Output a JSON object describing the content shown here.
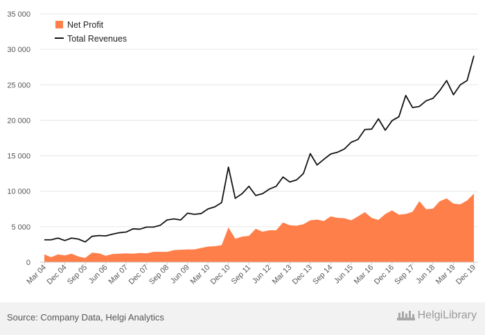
{
  "colors": {
    "net_profit": "#ff7f4a",
    "total_revenues": "#111111",
    "grid": "#e6e6e6"
  },
  "footer": {
    "source": "Source: Company Data, Helgi Analytics",
    "brand": "HelgiLibrary",
    "brand_icon": "helgi-logo-icon"
  },
  "chart_data": {
    "type": "area",
    "title": "",
    "xlabel": "",
    "ylabel": "",
    "ylim": [
      0,
      35000
    ],
    "yticks": [
      0,
      5000,
      10000,
      15000,
      20000,
      25000,
      30000,
      35000
    ],
    "ytick_labels": [
      "0",
      "5 000",
      "10 000",
      "15 000",
      "20 000",
      "25 000",
      "30 000",
      "35 000"
    ],
    "xtick_labels": [
      "Mar 04",
      "Dec 04",
      "Sep 05",
      "Jun 06",
      "Mar 07",
      "Dec 07",
      "Sep 08",
      "Jun 09",
      "Mar 10",
      "Dec 10",
      "Sep 11",
      "Jun 12",
      "Mar 13",
      "Dec 13",
      "Sep 14",
      "Jun 15",
      "Mar 16",
      "Dec 16",
      "Sep 17",
      "Jun 18",
      "Mar 19",
      "Dec 19"
    ],
    "grid": true,
    "legend": "top-left",
    "x": [
      "Mar 04",
      "Jun 04",
      "Sep 04",
      "Dec 04",
      "Mar 05",
      "Jun 05",
      "Sep 05",
      "Dec 05",
      "Mar 06",
      "Jun 06",
      "Sep 06",
      "Dec 06",
      "Mar 07",
      "Jun 07",
      "Sep 07",
      "Dec 07",
      "Mar 08",
      "Jun 08",
      "Sep 08",
      "Dec 08",
      "Mar 09",
      "Jun 09",
      "Sep 09",
      "Dec 09",
      "Mar 10",
      "Jun 10",
      "Sep 10",
      "Dec 10",
      "Mar 11",
      "Jun 11",
      "Sep 11",
      "Dec 11",
      "Mar 12",
      "Jun 12",
      "Sep 12",
      "Dec 12",
      "Mar 13",
      "Jun 13",
      "Sep 13",
      "Dec 13",
      "Mar 14",
      "Jun 14",
      "Sep 14",
      "Dec 14",
      "Mar 15",
      "Jun 15",
      "Sep 15",
      "Dec 15",
      "Mar 16",
      "Jun 16",
      "Sep 16",
      "Dec 16",
      "Mar 17",
      "Jun 17",
      "Sep 17",
      "Dec 17",
      "Mar 18",
      "Jun 18",
      "Sep 18",
      "Dec 18",
      "Mar 19",
      "Jun 19",
      "Sep 19",
      "Dec 19"
    ],
    "series": [
      {
        "name": "Net Profit",
        "style": "area",
        "values": [
          1100,
          700,
          1100,
          950,
          1200,
          800,
          600,
          1350,
          1250,
          900,
          1150,
          1200,
          1250,
          1200,
          1300,
          1250,
          1450,
          1450,
          1450,
          1700,
          1750,
          1800,
          1800,
          2000,
          2200,
          2250,
          2400,
          4900,
          3300,
          3600,
          3700,
          4700,
          4300,
          4500,
          4500,
          5600,
          5200,
          5150,
          5350,
          5900,
          6000,
          5800,
          6450,
          6250,
          6200,
          5900,
          6450,
          7050,
          6250,
          5950,
          6800,
          7300,
          6700,
          6800,
          7100,
          8600,
          7450,
          7550,
          8600,
          9000,
          8250,
          8150,
          8700,
          9650
        ]
      },
      {
        "name": "Total Revenues",
        "style": "line",
        "values": [
          3150,
          3150,
          3400,
          3050,
          3400,
          3250,
          2850,
          3650,
          3750,
          3700,
          3950,
          4150,
          4250,
          4700,
          4650,
          4950,
          4950,
          5200,
          5950,
          6100,
          5950,
          6900,
          6750,
          6850,
          7500,
          7800,
          8400,
          13400,
          9000,
          9650,
          10700,
          9400,
          9650,
          10300,
          10700,
          12000,
          11300,
          11600,
          12500,
          15300,
          13700,
          14500,
          15250,
          15500,
          15950,
          16900,
          17300,
          18700,
          18750,
          20200,
          18600,
          19950,
          20500,
          23500,
          21800,
          21950,
          22750,
          23100,
          24200,
          25600,
          23600,
          25000,
          25600,
          29100
        ]
      }
    ]
  }
}
